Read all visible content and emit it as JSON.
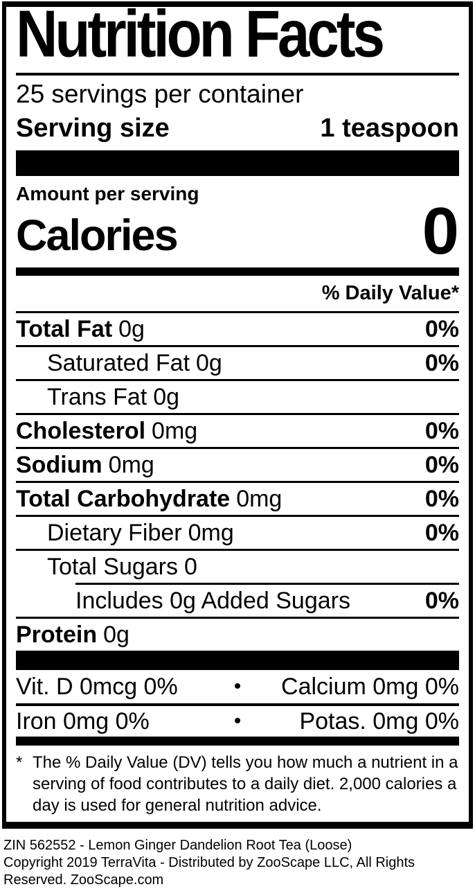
{
  "label": {
    "title": "Nutrition Facts",
    "servings_per_container": "25 servings per container",
    "serving_size_label": "Serving size",
    "serving_size_value": "1 teaspoon",
    "amount_per_serving": "Amount per serving",
    "calories_label": "Calories",
    "calories_value": "0",
    "daily_value_header": "% Daily Value*",
    "rows": [
      {
        "name": "Total Fat",
        "amount": "0g",
        "dv": "0%"
      },
      {
        "name": "Saturated Fat",
        "amount": "0g",
        "dv": "0%"
      },
      {
        "name": "Trans Fat",
        "amount": "0g",
        "dv": ""
      },
      {
        "name": "Cholesterol",
        "amount": "0mg",
        "dv": "0%"
      },
      {
        "name": "Sodium",
        "amount": "0mg",
        "dv": "0%"
      },
      {
        "name": "Total Carbohydrate",
        "amount": "0mg",
        "dv": "0%"
      },
      {
        "name": "Dietary Fiber",
        "amount": "0mg",
        "dv": "0%"
      },
      {
        "name": "Total Sugars",
        "amount": "0",
        "dv": ""
      },
      {
        "name": "Includes 0g Added Sugars",
        "amount": "",
        "dv": "0%"
      },
      {
        "name": "Protein",
        "amount": "0g",
        "dv": ""
      }
    ],
    "micronutrients": {
      "bullet": "•",
      "rows": [
        {
          "left": "Vit. D 0mcg 0%",
          "right": "Calcium 0mg 0%"
        },
        {
          "left": "Iron 0mg 0%",
          "right": "Potas. 0mg 0%"
        }
      ]
    },
    "footnote_marker": "*",
    "footnote_text": "The % Daily Value (DV) tells you how much a nutrient in a serving of food contributes to a daily diet. 2,000 calories a day is used for general nutrition advice."
  },
  "footer": {
    "line1": "ZIN 562552 - Lemon Ginger Dandelion Root Tea (Loose)",
    "line2": "Copyright 2019 TerraVita - Distributed by ZooScape LLC, All Rights Reserved. ZooScape.com"
  },
  "colors": {
    "ink": "#000000",
    "background": "#ffffff"
  }
}
